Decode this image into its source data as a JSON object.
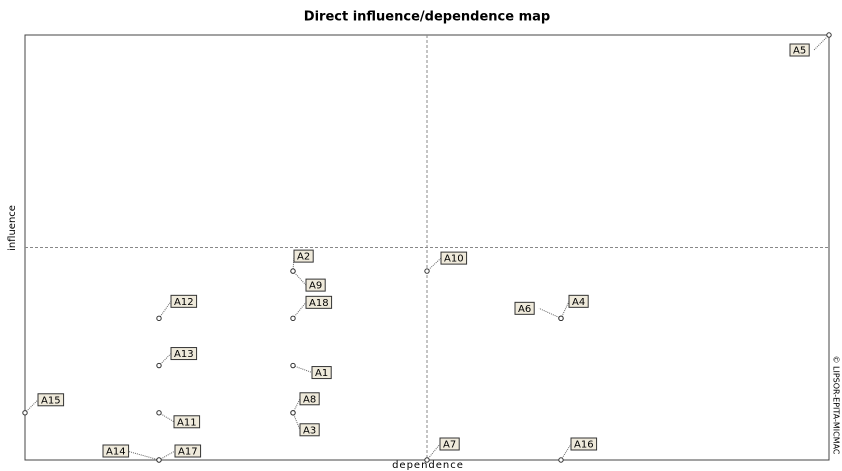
{
  "chart_data": {
    "type": "scatter",
    "title": "Direct influence/dependence map",
    "xlabel": "dependence",
    "ylabel": "influence",
    "annotation": "© LIPSOR-EPITA-MICMAC",
    "labels": [
      "A1",
      "A2",
      "A3",
      "A4",
      "A5",
      "A6",
      "A7",
      "A8",
      "A9",
      "A10",
      "A11",
      "A12",
      "A13",
      "A14",
      "A15",
      "A16",
      "A17",
      "A18"
    ],
    "x": [
      2,
      2,
      2,
      4,
      6,
      4,
      3,
      2,
      2,
      3,
      1,
      1,
      1,
      1,
      0,
      4,
      1,
      2
    ],
    "values": [
      2,
      4,
      1,
      3,
      9,
      3,
      0,
      1,
      4,
      4,
      1,
      3,
      2,
      0,
      1,
      0,
      0,
      3
    ],
    "xlim": [
      0,
      6
    ],
    "ylim": [
      0,
      9
    ],
    "mean_lines": {
      "x": 3,
      "y": 4.5
    }
  }
}
